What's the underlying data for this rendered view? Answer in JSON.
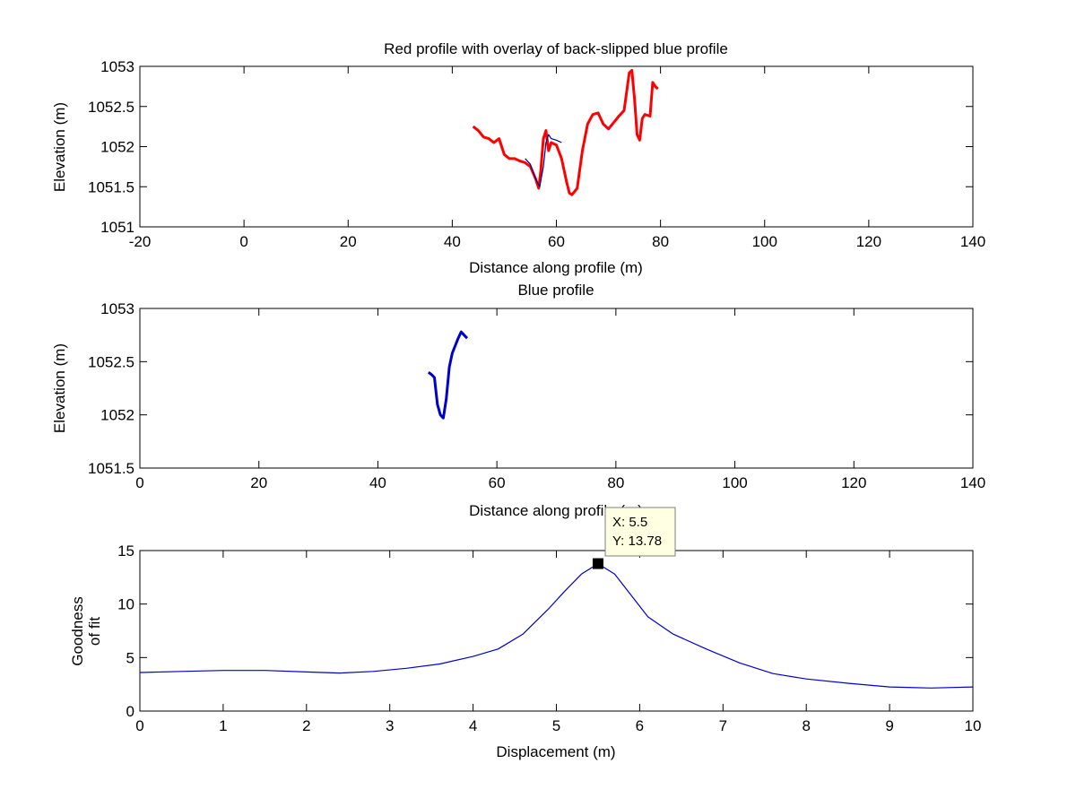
{
  "chart_data": [
    {
      "type": "line",
      "title": "Red profile with overlay of back-slipped blue profile",
      "xlabel": "Distance along profile (m)",
      "ylabel": "Elevation (m)",
      "xlim": [
        -20,
        140
      ],
      "ylim": [
        1051,
        1053
      ],
      "xticks": [
        "-20",
        "0",
        "20",
        "40",
        "60",
        "80",
        "100",
        "120",
        "140"
      ],
      "yticks": [
        "1051",
        "1051.5",
        "1052",
        "1052.5",
        "1053"
      ],
      "grid": false,
      "series": [
        {
          "color": "#ff0000",
          "x": [
            44,
            45,
            46,
            47,
            48,
            49,
            50,
            51,
            52,
            53,
            54,
            55,
            56,
            56.6,
            57,
            57.5,
            58,
            58.5,
            59,
            60,
            61,
            62,
            62.5,
            63,
            64,
            65,
            66,
            67,
            68,
            69,
            70,
            71,
            72,
            73,
            74,
            74.5,
            75,
            75.5,
            76,
            76.5,
            77,
            78,
            78.5,
            79,
            79.5
          ],
          "y": [
            1052.25,
            1052.2,
            1052.12,
            1052.1,
            1052.05,
            1052.1,
            1051.9,
            1051.85,
            1051.85,
            1051.82,
            1051.8,
            1051.75,
            1051.6,
            1051.48,
            1051.7,
            1052.1,
            1052.2,
            1051.95,
            1052.05,
            1052.02,
            1051.85,
            1051.55,
            1051.42,
            1051.4,
            1051.48,
            1051.95,
            1052.28,
            1052.4,
            1052.42,
            1052.28,
            1052.22,
            1052.3,
            1052.38,
            1052.45,
            1052.92,
            1052.95,
            1052.6,
            1052.15,
            1052.08,
            1052.35,
            1052.4,
            1052.38,
            1052.8,
            1052.75,
            1052.72
          ]
        },
        {
          "color": "#00008b",
          "x": [
            54,
            55,
            56,
            56.8,
            57.5,
            58,
            58.5,
            59,
            60,
            61
          ],
          "y": [
            1051.85,
            1051.78,
            1051.6,
            1051.5,
            1051.75,
            1052.05,
            1052.15,
            1052.1,
            1052.08,
            1052.05
          ]
        }
      ]
    },
    {
      "type": "line",
      "title": "Blue profile",
      "xlabel": "Distance along profile (m)",
      "ylabel": "Elevation (m)",
      "xlim": [
        0,
        140
      ],
      "ylim": [
        1051.5,
        1053
      ],
      "xticks": [
        "0",
        "20",
        "40",
        "60",
        "80",
        "100",
        "120",
        "140"
      ],
      "yticks": [
        "1051.5",
        "1052",
        "1052.5",
        "1053"
      ],
      "grid": false,
      "series": [
        {
          "color": "#0000cc",
          "x": [
            48.5,
            49,
            49.5,
            50,
            50.5,
            51,
            51.5,
            52,
            52.5,
            53,
            53.5,
            54,
            54.5,
            55
          ],
          "y": [
            1052.4,
            1052.38,
            1052.35,
            1052.1,
            1052.0,
            1051.97,
            1052.15,
            1052.45,
            1052.58,
            1052.65,
            1052.72,
            1052.78,
            1052.75,
            1052.72
          ]
        }
      ]
    },
    {
      "type": "line",
      "title": "",
      "xlabel": "Displacement (m)",
      "ylabel": [
        "Goodness",
        "of fit"
      ],
      "xlim": [
        0,
        10
      ],
      "ylim": [
        0,
        15
      ],
      "xticks": [
        "0",
        "1",
        "2",
        "3",
        "4",
        "5",
        "6",
        "7",
        "8",
        "9",
        "10"
      ],
      "yticks": [
        "0",
        "5",
        "10",
        "15"
      ],
      "grid": false,
      "series": [
        {
          "color": "#0000cc",
          "x": [
            0,
            0.5,
            1,
            1.5,
            2,
            2.4,
            2.8,
            3.2,
            3.6,
            4,
            4.3,
            4.6,
            4.9,
            5.1,
            5.3,
            5.5,
            5.7,
            5.9,
            6.1,
            6.4,
            6.8,
            7.2,
            7.6,
            8,
            8.5,
            9,
            9.5,
            10
          ],
          "y": [
            3.6,
            3.7,
            3.8,
            3.8,
            3.65,
            3.55,
            3.7,
            4.0,
            4.4,
            5.1,
            5.8,
            7.2,
            9.5,
            11.2,
            12.8,
            13.78,
            12.8,
            10.8,
            8.8,
            7.2,
            5.8,
            4.5,
            3.5,
            3.0,
            2.6,
            2.25,
            2.15,
            2.25
          ]
        }
      ],
      "datatip": {
        "x": 5.5,
        "y": 13.78,
        "label_x": "X: 5.5",
        "label_y": "Y: 13.78"
      }
    }
  ]
}
